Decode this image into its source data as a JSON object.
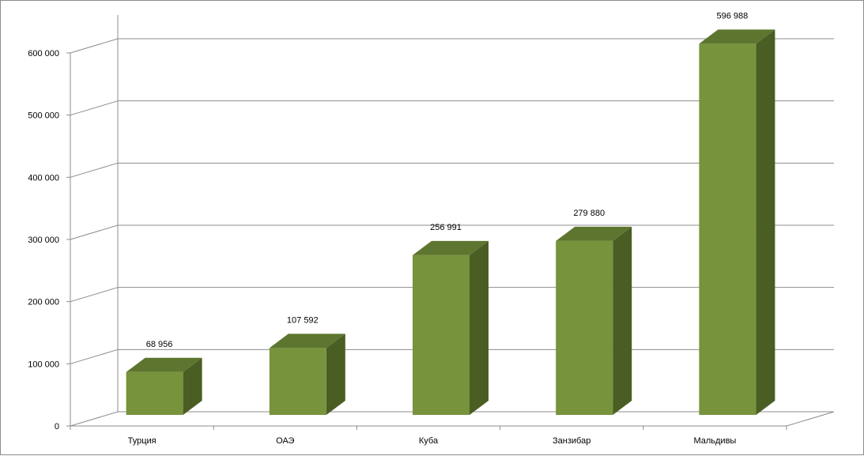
{
  "chart_data": {
    "type": "bar",
    "title": "",
    "xlabel": "",
    "ylabel": "",
    "categories": [
      "Турция",
      "ОАЭ",
      "Куба",
      "Занзибар",
      "Мальдивы"
    ],
    "values": [
      68956,
      107592,
      256991,
      279880,
      596988
    ],
    "value_labels": [
      "68 956",
      "107 592",
      "256 991",
      "279 880",
      "596 988"
    ],
    "ylim": [
      0,
      600000
    ],
    "yticks": [
      0,
      100000,
      200000,
      300000,
      400000,
      500000,
      600000
    ],
    "ytick_labels": [
      "0",
      "100 000",
      "200 000",
      "300 000",
      "400 000",
      "500 000",
      "600 000"
    ],
    "grid": true,
    "legend": false,
    "style": "3d-column",
    "colors": {
      "bar_front": "#77933c",
      "bar_top": "#5e752f",
      "bar_side": "#4a5e23",
      "grid": "#8c8c8c"
    }
  }
}
